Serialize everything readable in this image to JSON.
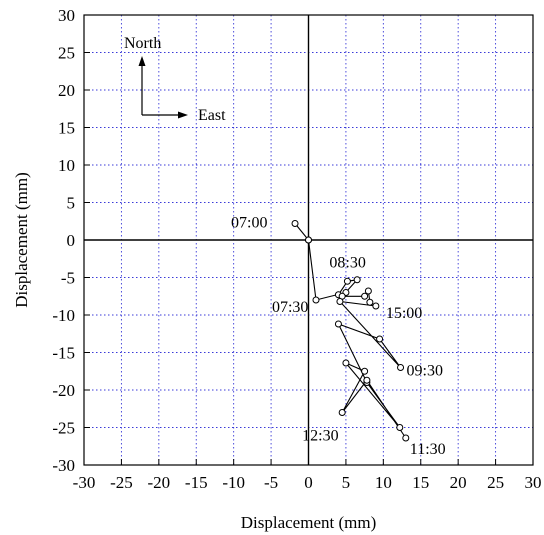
{
  "chart_data": {
    "type": "scatter",
    "xlabel": "Displacement (mm)",
    "ylabel": "Displacement (mm)",
    "xlim": [
      -30,
      30
    ],
    "ylim": [
      -30,
      30
    ],
    "xticks": [
      -30,
      -25,
      -20,
      -15,
      -10,
      -5,
      0,
      5,
      10,
      15,
      20,
      25,
      30
    ],
    "yticks": [
      -30,
      -25,
      -20,
      -15,
      -10,
      -5,
      0,
      5,
      10,
      15,
      20,
      25,
      30
    ],
    "grid": true,
    "compass": {
      "north": "North",
      "east": "East"
    },
    "series": [
      {
        "points": [
          [
            0,
            0
          ],
          [
            -1.8,
            2.2
          ],
          [
            0,
            0
          ],
          [
            1,
            -8
          ],
          [
            5,
            -7
          ],
          [
            4,
            -7.3
          ],
          [
            5.2,
            -5.5
          ],
          [
            6.5,
            -5.3
          ],
          [
            4.5,
            -7.5
          ],
          [
            7.5,
            -7.5
          ],
          [
            8,
            -6.8
          ],
          [
            8.2,
            -8.3
          ],
          [
            9,
            -8.8
          ],
          [
            4.2,
            -8.2
          ],
          [
            12.3,
            -17
          ],
          [
            9.5,
            -13.2
          ],
          [
            4,
            -11.2
          ],
          [
            7.8,
            -19
          ],
          [
            12.2,
            -25
          ],
          [
            5,
            -16.4
          ],
          [
            7.5,
            -17.5
          ],
          [
            4.5,
            -23
          ],
          [
            7.8,
            -18.7
          ],
          [
            13,
            -26.4
          ]
        ]
      }
    ],
    "annotations": [
      {
        "text": "07:00",
        "x": -1.8,
        "y": 2.2
      },
      {
        "text": "07:30",
        "x": 1,
        "y": -8
      },
      {
        "text": "08:30",
        "x": 5.2,
        "y": -5.5
      },
      {
        "text": "15:00",
        "x": 9,
        "y": -8.8
      },
      {
        "text": "09:30",
        "x": 12.3,
        "y": -17
      },
      {
        "text": "12:30",
        "x": 4.5,
        "y": -23
      },
      {
        "text": "11:30",
        "x": 13,
        "y": -26.4
      }
    ]
  }
}
